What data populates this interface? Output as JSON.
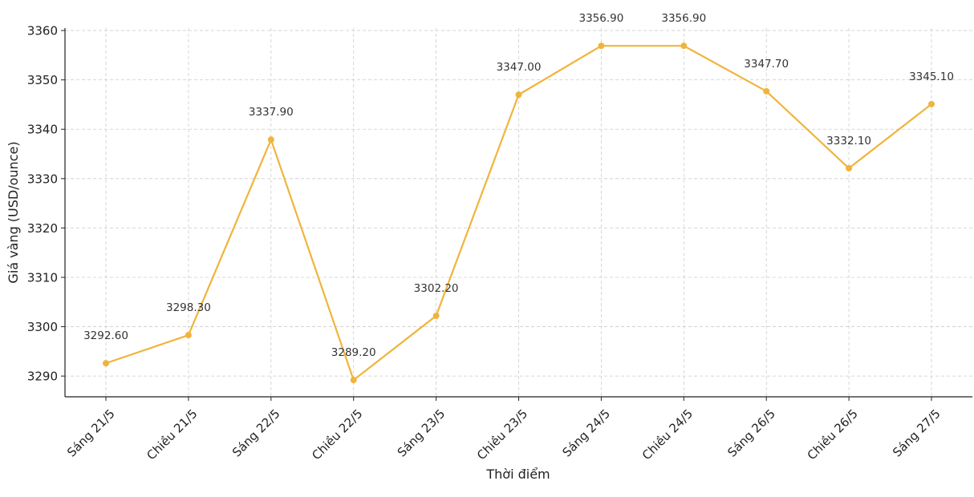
{
  "chart_data": {
    "type": "line",
    "title": "",
    "xlabel": "Thời điểm",
    "ylabel": "Giá vàng (USD/ounce)",
    "categories": [
      "Sáng 21/5",
      "Chiều 21/5",
      "Sáng 22/5",
      "Chiều 22/5",
      "Sáng 23/5",
      "Chiều 23/5",
      "Sáng 24/5",
      "Chiều 24/5",
      "Sáng 26/5",
      "Chiều 26/5",
      "Sáng 27/5"
    ],
    "values": [
      3292.6,
      3298.3,
      3337.9,
      3289.2,
      3302.2,
      3347.0,
      3356.9,
      3356.9,
      3347.7,
      3332.1,
      3345.1
    ],
    "data_labels": [
      "3292.60",
      "3298.30",
      "3337.90",
      "3289.20",
      "3302.20",
      "3347.00",
      "3356.90",
      "3356.90",
      "3347.70",
      "3332.10",
      "3345.10"
    ],
    "ylim": [
      3285.8,
      3360.5
    ],
    "yticks": [
      3290,
      3300,
      3310,
      3320,
      3330,
      3340,
      3350,
      3360
    ],
    "ytick_labels": [
      "3290",
      "3300",
      "3310",
      "3320",
      "3330",
      "3340",
      "3350",
      "3360"
    ],
    "grid": true,
    "legend": "none",
    "line_color": "#f0b43c",
    "marker_color": "#f0b43c"
  }
}
